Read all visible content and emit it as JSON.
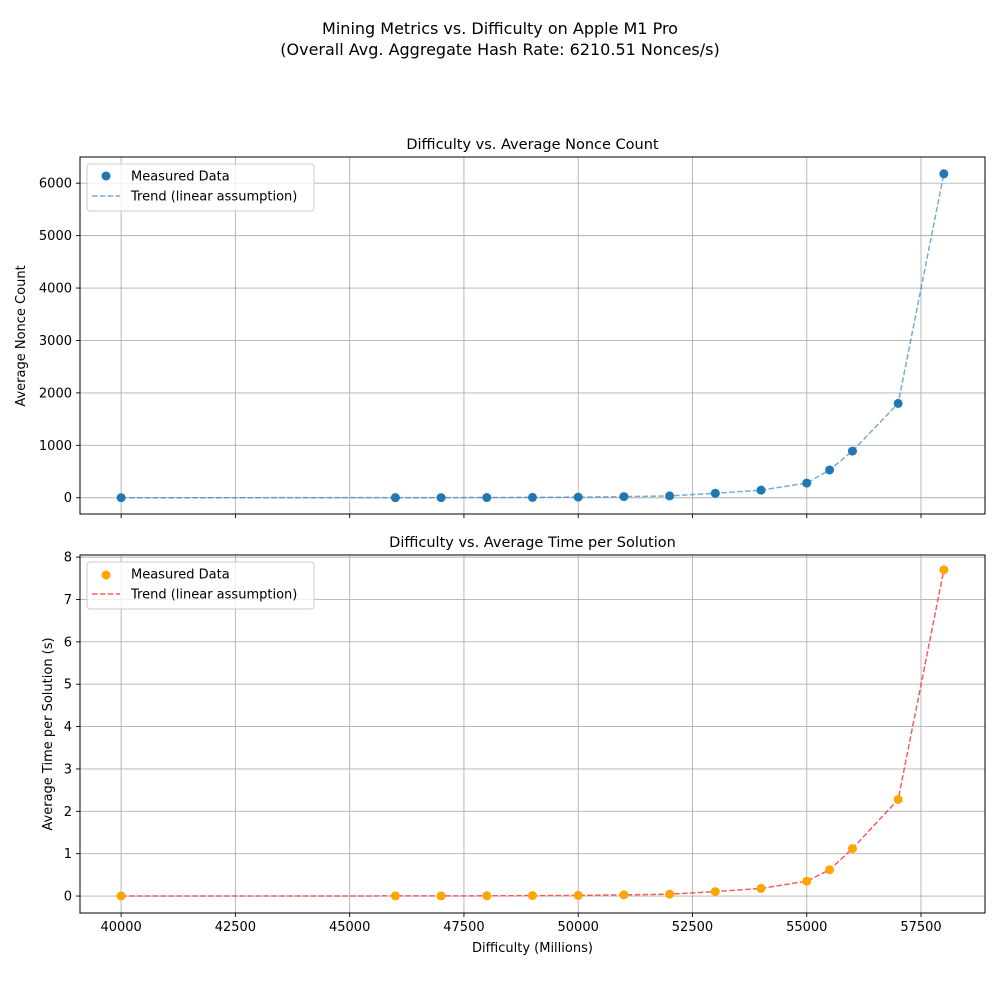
{
  "figure": {
    "title_line1": "Mining Metrics vs. Difficulty on Apple M1 Pro",
    "title_line2": "(Overall Avg. Aggregate Hash Rate: 6210.51 Nonces/s)"
  },
  "chart_data": [
    {
      "type": "scatter",
      "title": "Difficulty vs. Average Nonce Count",
      "xlabel": "",
      "ylabel": "Average Nonce Count",
      "xlim": [
        39100,
        58900
      ],
      "ylim": [
        -310,
        6500
      ],
      "xticks": [
        40000,
        42500,
        45000,
        47500,
        50000,
        52500,
        55000,
        57500
      ],
      "yticks": [
        0,
        1000,
        2000,
        3000,
        4000,
        5000,
        6000
      ],
      "show_xtick_labels": false,
      "grid": true,
      "legend_position": "upper-left",
      "colors": {
        "scatter": "#1f77b4",
        "trend": "#1f77b4"
      },
      "x": [
        40000,
        46000,
        47000,
        48000,
        49000,
        50000,
        51000,
        52000,
        53000,
        54000,
        55000,
        55500,
        56000,
        57000,
        58000
      ],
      "series": [
        {
          "name": "Measured Data",
          "values": [
            0.2,
            2,
            3,
            4,
            7,
            12,
            22,
            35,
            85,
            145,
            280,
            530,
            890,
            1800,
            6180
          ]
        },
        {
          "name": "Trend (linear assumption)",
          "values": [
            0.2,
            2,
            3,
            4,
            7,
            12,
            22,
            35,
            85,
            145,
            280,
            530,
            890,
            1800,
            6180
          ]
        }
      ]
    },
    {
      "type": "scatter",
      "title": "Difficulty vs. Average Time per Solution",
      "xlabel": "Difficulty (Millions)",
      "ylabel": "Average Time per Solution (s)",
      "xlim": [
        39100,
        58900
      ],
      "ylim": [
        -0.4,
        8.05
      ],
      "xticks": [
        40000,
        42500,
        45000,
        47500,
        50000,
        52500,
        55000,
        57500
      ],
      "yticks": [
        0,
        1,
        2,
        3,
        4,
        5,
        6,
        7,
        8
      ],
      "show_xtick_labels": true,
      "grid": true,
      "legend_position": "upper-left",
      "colors": {
        "scatter": "#ffa500",
        "trend": "#f0504a"
      },
      "x": [
        40000,
        46000,
        47000,
        48000,
        49000,
        50000,
        51000,
        52000,
        53000,
        54000,
        55000,
        55500,
        56000,
        57000,
        58000
      ],
      "series": [
        {
          "name": "Measured Data",
          "values": [
            0.0002,
            0.003,
            0.004,
            0.006,
            0.01,
            0.015,
            0.028,
            0.045,
            0.105,
            0.18,
            0.35,
            0.62,
            1.12,
            2.28,
            7.7
          ]
        },
        {
          "name": "Trend (linear assumption)",
          "values": [
            0.0002,
            0.003,
            0.004,
            0.006,
            0.01,
            0.015,
            0.028,
            0.045,
            0.105,
            0.18,
            0.35,
            0.62,
            1.12,
            2.28,
            7.7
          ]
        }
      ]
    }
  ]
}
